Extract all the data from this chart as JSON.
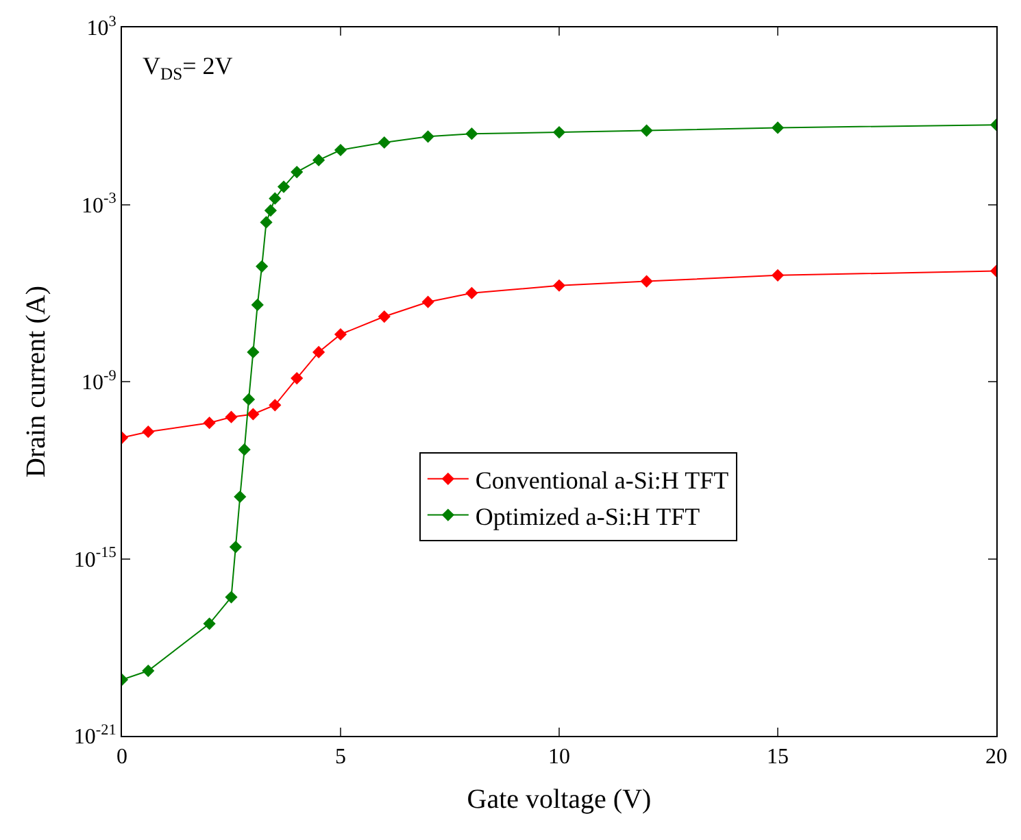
{
  "chart_data": {
    "type": "line",
    "xlabel": "Gate voltage (V)",
    "ylabel": "Drain current (A)",
    "annotations": [
      "V$_{DS}$= 2V"
    ],
    "log": "y",
    "marker": "diamond",
    "line_style": "solid",
    "legend": "center right",
    "xlim": [
      0,
      20
    ],
    "xticks": [
      0,
      5,
      10,
      15,
      20
    ],
    "ylim": [
      1e-21,
      1000
    ],
    "yticks": [
      {
        "value": 1e-21,
        "label": "10$^{-21}$"
      },
      {
        "value": 1e-15,
        "label": "10$^{-15}$"
      },
      {
        "value": 1e-09,
        "label": "10$^{-9}$"
      },
      {
        "value": 0.001,
        "label": "10$^{-3}$"
      },
      {
        "value": 1000,
        "label": "10$^{3}$"
      }
    ],
    "series": [
      {
        "name": "Conventional a-Si:H TFT",
        "color": "#ff0000",
        "x": [
          0,
          0.6,
          2,
          2.5,
          3,
          3.5,
          4,
          4.5,
          5,
          6,
          7,
          8,
          10,
          12,
          15,
          20
        ],
        "values": [
          1.26e-11,
          2e-11,
          4e-11,
          6.3e-11,
          7.9e-11,
          1.6e-10,
          1.3e-09,
          1e-08,
          4e-08,
          1.6e-07,
          5e-07,
          1e-06,
          1.8e-06,
          2.5e-06,
          4e-06,
          5.6e-06
        ]
      },
      {
        "name": "Optimized a-Si:H TFT",
        "color": "#008000",
        "x": [
          0,
          0.6,
          2,
          2.5,
          2.6,
          2.7,
          2.8,
          2.9,
          3.0,
          3.1,
          3.2,
          3.3,
          3.4,
          3.5,
          3.7,
          4,
          4.5,
          5,
          6,
          7,
          8,
          10,
          12,
          15,
          20
        ],
        "values": [
          8e-20,
          1.6e-19,
          6.3e-18,
          5e-17,
          2.5e-15,
          1.26e-13,
          5e-12,
          2.5e-10,
          1e-08,
          4e-07,
          8e-06,
          0.00025,
          0.00063,
          0.0016,
          0.004,
          0.0126,
          0.032,
          0.07,
          0.126,
          0.2,
          0.25,
          0.28,
          0.32,
          0.4,
          0.5
        ]
      }
    ]
  }
}
